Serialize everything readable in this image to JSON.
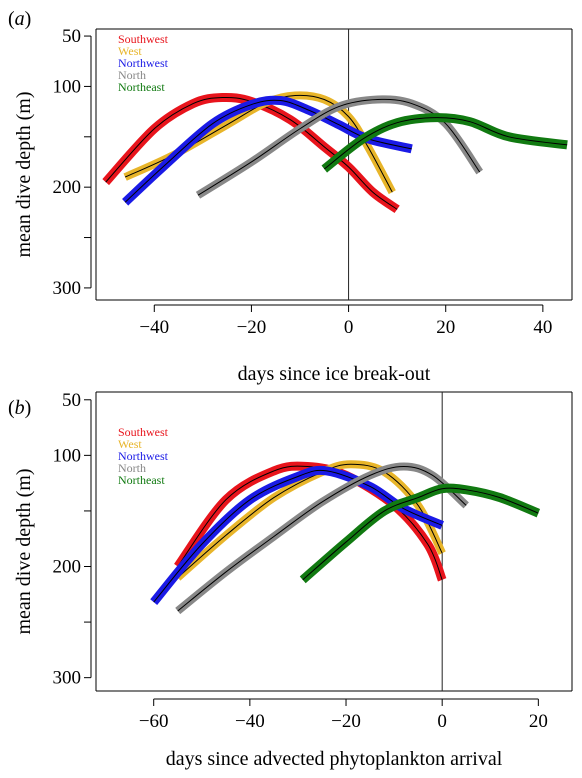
{
  "chart_data": [
    {
      "type": "line",
      "panel_label": "a",
      "xlabel": "days since ice break-out",
      "ylabel": "mean dive depth (m)",
      "xlim": [
        -52,
        46
      ],
      "ylim": [
        312,
        43
      ],
      "y_inverted": true,
      "x_ticks": [
        -40,
        -20,
        0,
        20,
        40
      ],
      "x_tick_labels": [
        "−40",
        "−20",
        "0",
        "20",
        "40"
      ],
      "y_ticks": [
        50,
        100,
        200,
        300
      ],
      "y_minor_ticks": [
        150,
        250
      ],
      "vertical_line_x": 0,
      "legend_position": "top-left",
      "series": [
        {
          "name": "Southwest",
          "color": "#e8141c",
          "band_width": 9,
          "x": [
            -50,
            -40,
            -32,
            -26,
            -20,
            -12,
            -5,
            0,
            5,
            10
          ],
          "y": [
            195,
            142,
            117,
            111,
            115,
            133,
            160,
            180,
            205,
            222
          ]
        },
        {
          "name": "West",
          "color": "#e8b52a",
          "band_width": 8,
          "x": [
            -46,
            -36,
            -25,
            -17,
            -11,
            -5,
            0,
            4,
            9
          ],
          "y": [
            190,
            168,
            138,
            116,
            109,
            113,
            130,
            160,
            205
          ]
        },
        {
          "name": "Northwest",
          "color": "#1a1ae6",
          "band_width": 9,
          "x": [
            -46,
            -38,
            -28,
            -20,
            -14,
            -8,
            -2,
            4,
            13
          ],
          "y": [
            215,
            179,
            137,
            118,
            114,
            124,
            138,
            152,
            162
          ]
        },
        {
          "name": "North",
          "color": "#888888",
          "band_width": 8,
          "x": [
            -31,
            -20,
            -10,
            -2,
            6,
            13,
            20,
            27
          ],
          "y": [
            208,
            175,
            142,
            120,
            113,
            117,
            137,
            185
          ]
        },
        {
          "name": "Northeast",
          "color": "#117a11",
          "band_width": 9,
          "x": [
            -5,
            3,
            10,
            18,
            25,
            33,
            45
          ],
          "y": [
            182,
            152,
            136,
            131,
            135,
            150,
            158
          ]
        }
      ]
    },
    {
      "type": "line",
      "panel_label": "b",
      "xlabel": "days since advected phytoplankton arrival",
      "ylabel": "mean dive depth (m)",
      "xlim": [
        -72,
        27
      ],
      "ylim": [
        312,
        43
      ],
      "y_inverted": true,
      "x_ticks": [
        -60,
        -40,
        -20,
        0,
        20
      ],
      "x_tick_labels": [
        "−60",
        "−40",
        "−20",
        "0",
        "20"
      ],
      "y_ticks": [
        50,
        100,
        200,
        300
      ],
      "y_minor_ticks": [
        150,
        250
      ],
      "vertical_line_x": 0,
      "legend_position": "top-left",
      "series": [
        {
          "name": "Southwest",
          "color": "#e8141c",
          "band_width": 9,
          "x": [
            -55,
            -45,
            -35,
            -28,
            -20,
            -10,
            -3,
            0
          ],
          "y": [
            200,
            140,
            114,
            110,
            118,
            145,
            180,
            212
          ]
        },
        {
          "name": "West",
          "color": "#e8b52a",
          "band_width": 8,
          "x": [
            -55,
            -45,
            -35,
            -25,
            -19,
            -12,
            -5,
            0
          ],
          "y": [
            210,
            172,
            138,
            115,
            108,
            115,
            145,
            188
          ]
        },
        {
          "name": "Northwest",
          "color": "#1a1ae6",
          "band_width": 9,
          "x": [
            -60,
            -50,
            -40,
            -30,
            -24,
            -15,
            -8,
            0
          ],
          "y": [
            232,
            180,
            140,
            119,
            114,
            128,
            148,
            163
          ]
        },
        {
          "name": "North",
          "color": "#888888",
          "band_width": 8,
          "x": [
            -55,
            -45,
            -35,
            -25,
            -15,
            -8,
            -2,
            5
          ],
          "y": [
            240,
            205,
            173,
            142,
            118,
            110,
            118,
            145
          ]
        },
        {
          "name": "Northeast",
          "color": "#117a11",
          "band_width": 9,
          "x": [
            -29,
            -20,
            -12,
            -5,
            0,
            5,
            12,
            20
          ],
          "y": [
            212,
            178,
            150,
            138,
            130,
            131,
            138,
            152
          ]
        }
      ]
    }
  ]
}
